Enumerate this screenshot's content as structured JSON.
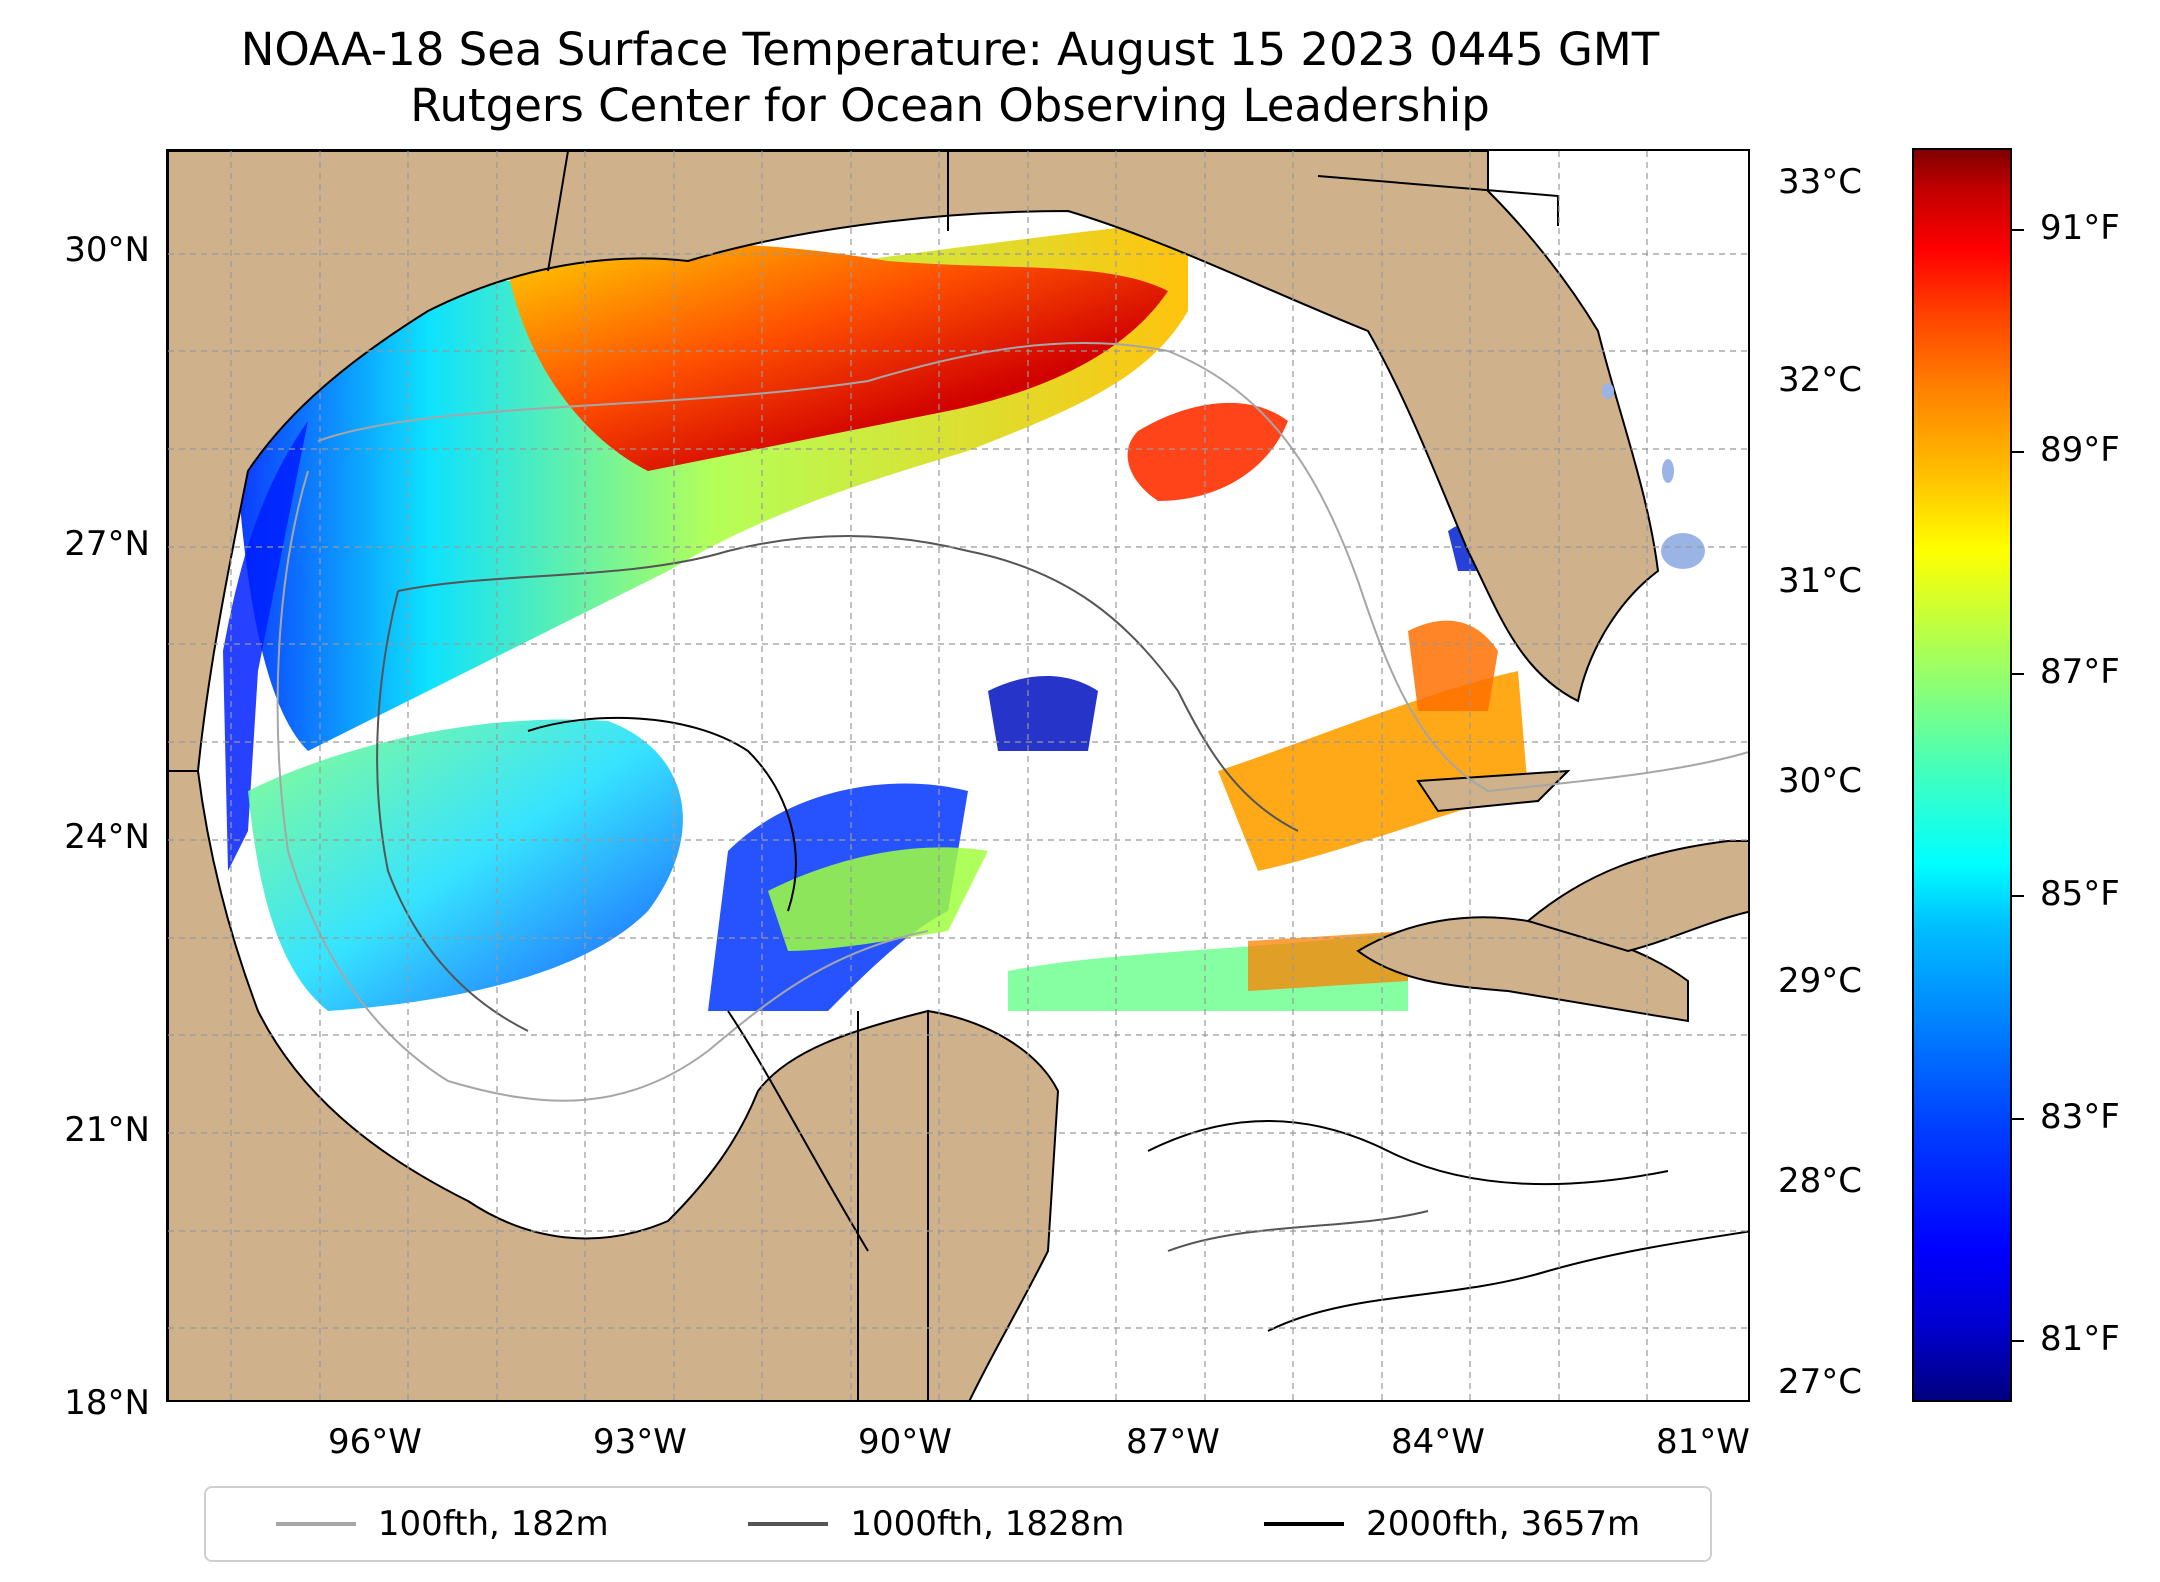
{
  "title": {
    "line1": "NOAA-18 Sea Surface Temperature: August 15 2023 0445 GMT",
    "line2": "Rutgers Center for Ocean Observing Leadership"
  },
  "map": {
    "lat_ticks": [
      "30°N",
      "27°N",
      "24°N",
      "21°N",
      "18°N"
    ],
    "lon_ticks": [
      "96°W",
      "93°W",
      "90°W",
      "87°W",
      "84°W",
      "81°W"
    ],
    "land_color": "#cfb28c",
    "water_color": "#ffffff",
    "grid": "on, dashed"
  },
  "legend": {
    "items": [
      {
        "label": "100fth, 182m",
        "color": "#a6a6a6"
      },
      {
        "label": "1000fth, 1828m",
        "color": "#555555"
      },
      {
        "label": "2000fth, 3657m",
        "color": "#000000"
      }
    ]
  },
  "colorbar": {
    "colormap": "jet",
    "celsius_labels": [
      "33°C",
      "32°C",
      "31°C",
      "30°C",
      "29°C",
      "28°C",
      "27°C"
    ],
    "fahrenheit_labels": [
      "91°F",
      "89°F",
      "87°F",
      "85°F",
      "83°F",
      "81°F"
    ]
  }
}
